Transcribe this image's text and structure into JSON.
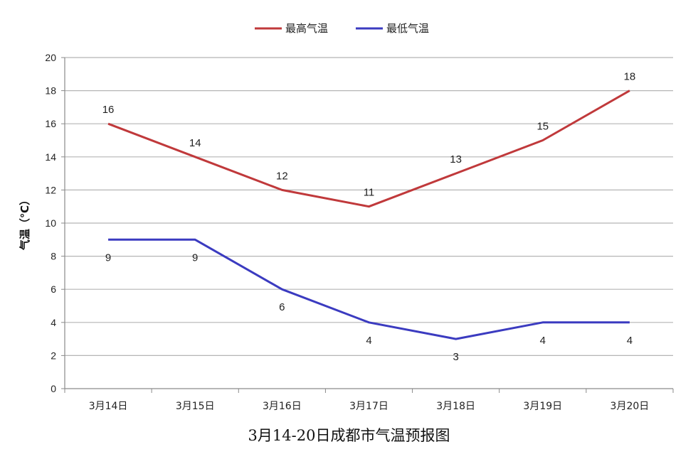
{
  "caption": "3月14-20日成都市气温预报图",
  "chart_data": {
    "type": "line",
    "categories": [
      "3月14日",
      "3月15日",
      "3月16日",
      "3月17日",
      "3月18日",
      "3月19日",
      "3月20日"
    ],
    "series": [
      {
        "name": "最高气温",
        "values": [
          16,
          14,
          12,
          11,
          13,
          15,
          18
        ],
        "color": "#c0393b"
      },
      {
        "name": "最低气温",
        "values": [
          9,
          9,
          6,
          4,
          3,
          4,
          4
        ],
        "color": "#3b3bc0"
      }
    ],
    "ylabel": "气温（℃）",
    "ylim": [
      0,
      20
    ],
    "yticks": [
      0,
      2,
      4,
      6,
      8,
      10,
      12,
      14,
      16,
      18,
      20
    ],
    "grid": true,
    "legend": "top-center",
    "data_labels": true
  }
}
